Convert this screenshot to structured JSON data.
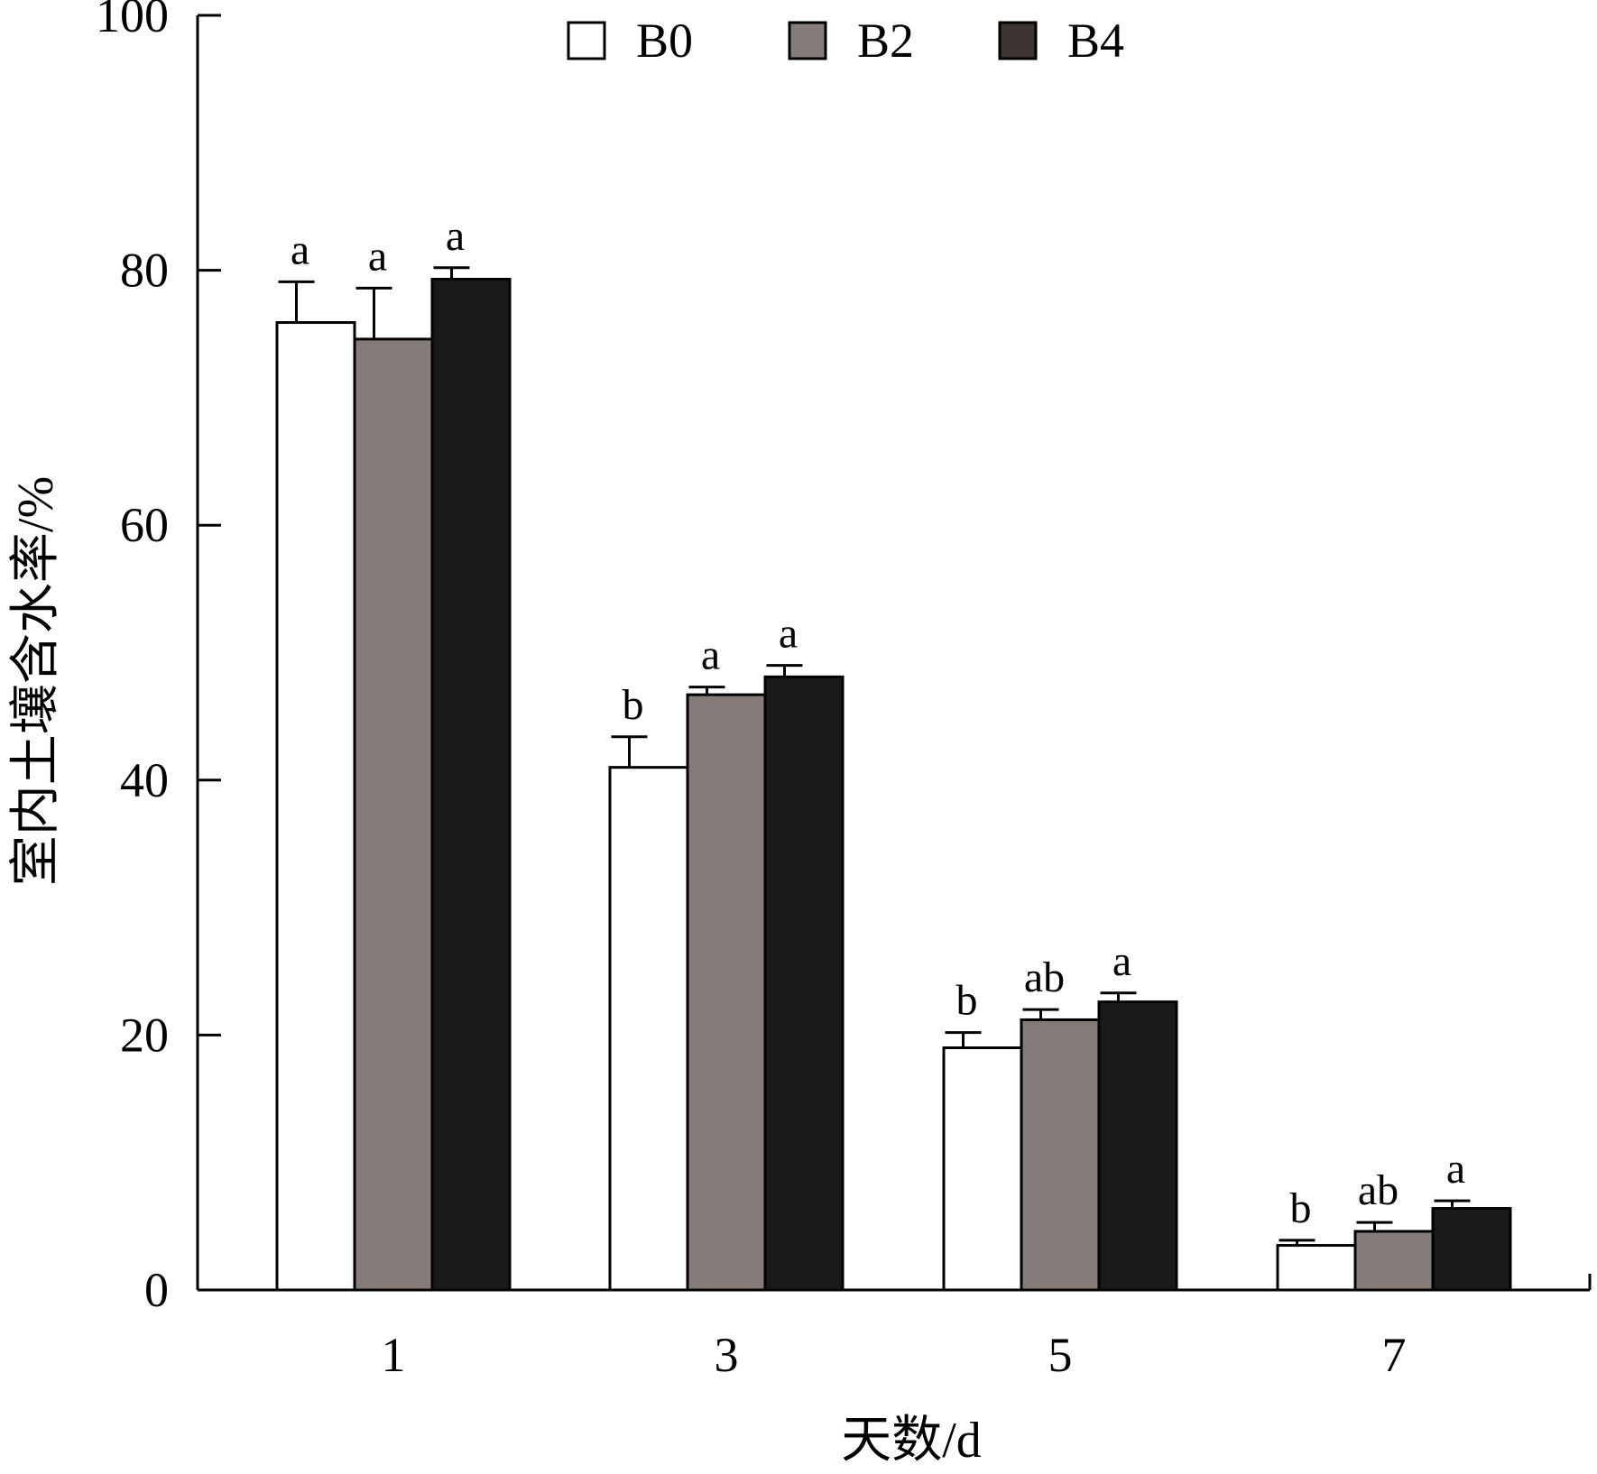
{
  "chart_data": {
    "type": "bar",
    "categories": [
      "1",
      "3",
      "5",
      "7"
    ],
    "series": [
      {
        "name": "B0",
        "color": "#ffffff",
        "values": [
          75.9,
          41.0,
          19.0,
          3.5
        ],
        "errors": [
          3.2,
          2.4,
          1.2,
          0.4
        ],
        "labels": [
          "a",
          "b",
          "b",
          "b"
        ]
      },
      {
        "name": "B2",
        "color": "#857c7a",
        "values": [
          74.6,
          46.7,
          21.2,
          4.6
        ],
        "errors": [
          4.0,
          0.6,
          0.8,
          0.7
        ],
        "labels": [
          "a",
          "a",
          "ab",
          "ab"
        ]
      },
      {
        "name": "B4",
        "color": "#1a1a1a",
        "values": [
          79.3,
          48.1,
          22.6,
          6.4
        ],
        "errors": [
          0.9,
          0.9,
          0.7,
          0.6
        ],
        "labels": [
          "a",
          "a",
          "a",
          "a"
        ]
      }
    ],
    "legend_swatch_colors": [
      "#ffffff",
      "#857c7a",
      "#3d3532"
    ],
    "xlabel": "天数/d",
    "ylabel": "室内土壤含水率/%",
    "ylim": [
      0,
      100
    ],
    "yticks": [
      0,
      20,
      40,
      60,
      80,
      100
    ],
    "grid": false,
    "legend_position": "top-center"
  }
}
